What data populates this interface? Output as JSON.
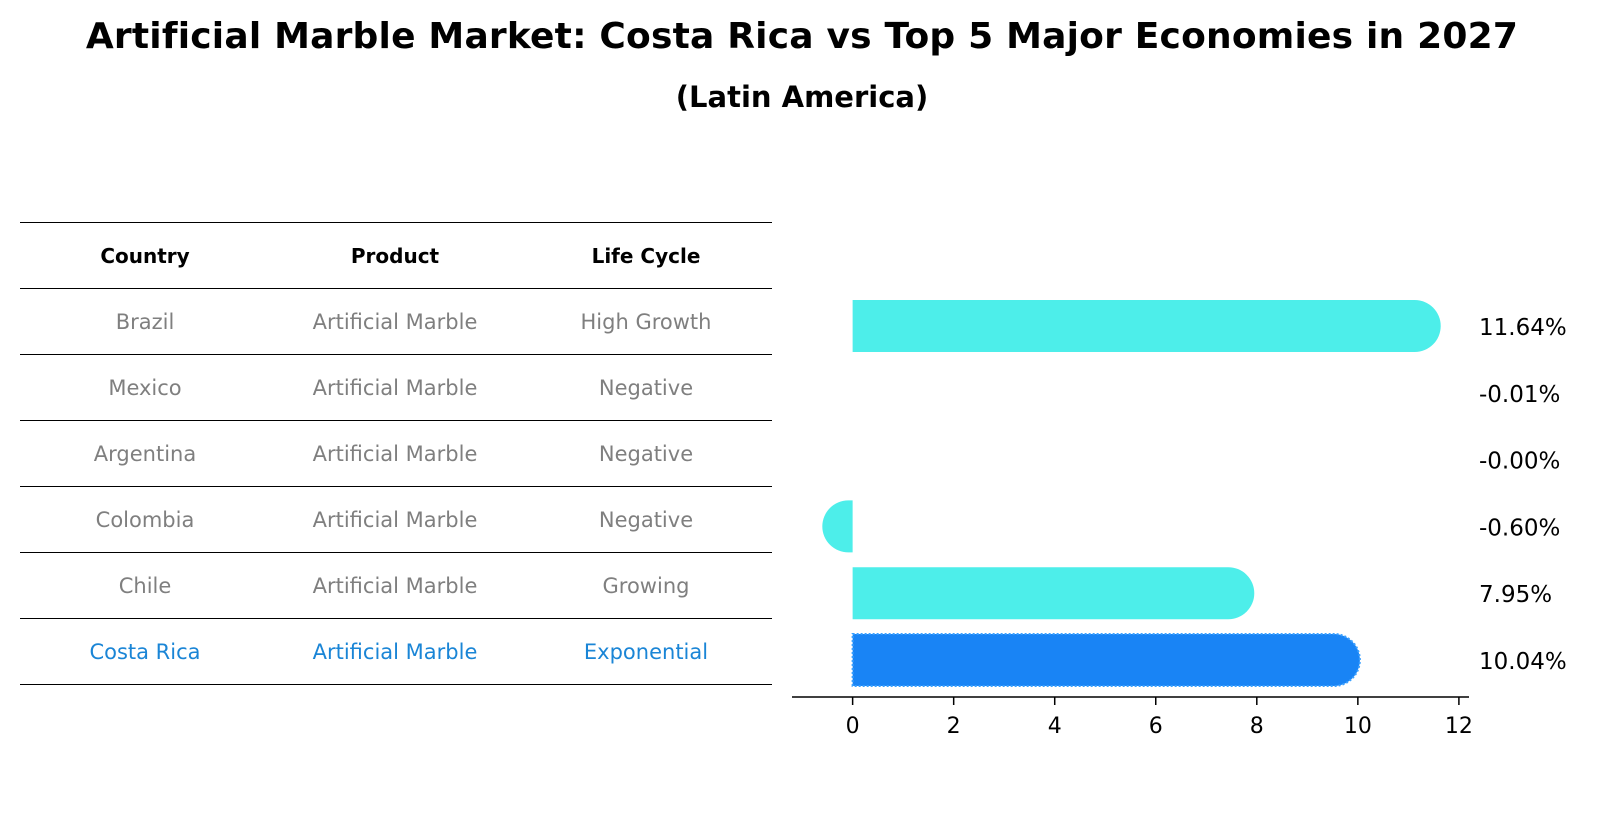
{
  "title": "Artificial Marble Market: Costa Rica vs Top 5 Major Economies in 2027",
  "subtitle": "(Latin America)",
  "table": {
    "headers": [
      "Country",
      "Product",
      "Life Cycle"
    ],
    "rows": [
      [
        "Brazil",
        "Artificial Marble",
        "High Growth"
      ],
      [
        "Mexico",
        "Artificial Marble",
        "Negative"
      ],
      [
        "Argentina",
        "Artificial Marble",
        "Negative"
      ],
      [
        "Colombia",
        "Artificial Marble",
        "Negative"
      ],
      [
        "Chile",
        "Artificial Marble",
        "Growing"
      ],
      [
        "Costa Rica",
        "Artificial Marble",
        "Exponential"
      ]
    ],
    "highlight_row": 5
  },
  "colors": {
    "bar": "#4deeea",
    "highlight_bar": "#1984f5",
    "highlight_text": "#1a85d6",
    "muted_text": "#7f7f7f"
  },
  "chart_data": {
    "type": "bar",
    "orientation": "horizontal",
    "categories": [
      "Brazil",
      "Mexico",
      "Argentina",
      "Colombia",
      "Chile",
      "Costa Rica"
    ],
    "values": [
      11.64,
      -0.01,
      -0.0,
      -0.6,
      7.95,
      10.04
    ],
    "value_labels": [
      "11.64%",
      "-0.01%",
      "-0.00%",
      "-0.60%",
      "7.95%",
      "10.04%"
    ],
    "highlight_index": 5,
    "xlim": [
      -1.2,
      12.2
    ],
    "xticks": [
      0,
      2,
      4,
      6,
      8,
      10,
      12
    ],
    "xlabel": "",
    "ylabel": "",
    "grid": false
  }
}
